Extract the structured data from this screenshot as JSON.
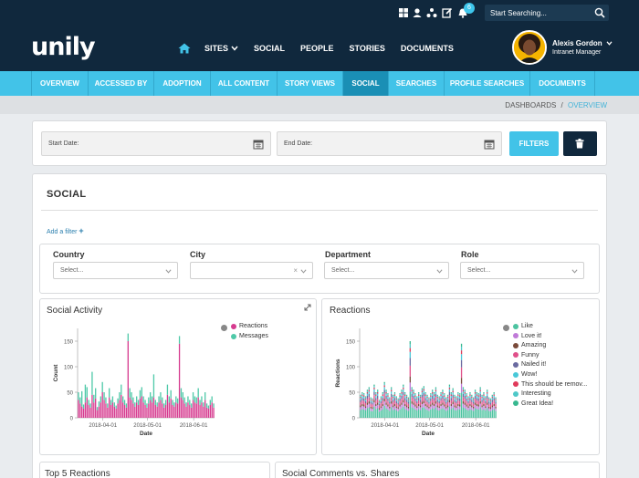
{
  "topbar": {
    "notifications_count": "6",
    "search_placeholder": "Start Searching..."
  },
  "header": {
    "logo": "unily",
    "nav": [
      {
        "label": "SITES",
        "has_dropdown": true
      },
      {
        "label": "SOCIAL"
      },
      {
        "label": "PEOPLE"
      },
      {
        "label": "STORIES"
      },
      {
        "label": "DOCUMENTS"
      }
    ],
    "user": {
      "name": "Alexis Gordon",
      "role": "Intranet Manager"
    }
  },
  "subnav": {
    "tabs": [
      "OVERVIEW",
      "ACCESSED BY",
      "ADOPTION",
      "ALL CONTENT",
      "STORY VIEWS",
      "SOCIAL",
      "SEARCHES",
      "PROFILE SEARCHES",
      "DOCUMENTS"
    ],
    "active": "SOCIAL"
  },
  "breadcrumb": {
    "parent": "DASHBOARDS",
    "separator": "/",
    "current": "OVERVIEW"
  },
  "filters_bar": {
    "start_date_placeholder": "Start Date:",
    "end_date_placeholder": "End Date:",
    "filters_button": "FILTERS"
  },
  "social": {
    "title": "SOCIAL",
    "add_filter": "Add a filter",
    "filters": [
      {
        "label": "Country",
        "placeholder": "Select..."
      },
      {
        "label": "City",
        "placeholder": ""
      },
      {
        "label": "Department",
        "placeholder": "Select..."
      },
      {
        "label": "Role",
        "placeholder": "Select..."
      }
    ]
  },
  "colors": {
    "dark_navy": "#10283d",
    "accent_cyan": "#42c3e8",
    "reactions_pink": "#d63b8f",
    "messages_teal": "#4fc9a8"
  },
  "chart_data": [
    {
      "type": "bar",
      "stacked": true,
      "title": "Social Activity",
      "xlabel": "Date",
      "ylabel": "Count",
      "ylim": [
        0,
        175
      ],
      "yticks": [
        0,
        50,
        100,
        150
      ],
      "xticks": [
        "2018-04-01",
        "2018-05-01",
        "2018-06-01"
      ],
      "x_range": [
        "2018-03-15",
        "2018-06-15"
      ],
      "legend_position": "right",
      "series": [
        {
          "name": "Reactions",
          "color": "#d63b8f",
          "values": [
            35,
            28,
            22,
            18,
            30,
            40,
            25,
            20,
            45,
            30,
            38,
            15,
            22,
            30,
            50,
            35,
            28,
            20,
            40,
            25,
            30,
            22,
            18,
            28,
            35,
            45,
            30,
            25,
            20,
            150,
            40,
            35,
            28,
            22,
            30,
            25,
            38,
            42,
            30,
            25,
            20,
            28,
            35,
            30,
            40,
            25,
            22,
            30,
            35,
            28,
            20,
            25,
            45,
            30,
            38,
            25,
            22,
            30,
            28,
            145,
            40,
            35,
            28,
            22,
            30,
            25,
            20,
            35,
            30,
            28,
            40,
            25,
            30,
            22,
            35,
            20,
            18,
            25,
            30,
            20
          ]
        },
        {
          "name": "Messages",
          "color": "#4fc9a8",
          "values": [
            15,
            12,
            30,
            8,
            35,
            20,
            10,
            8,
            45,
            15,
            20,
            6,
            10,
            12,
            20,
            15,
            12,
            8,
            18,
            10,
            12,
            8,
            6,
            10,
            15,
            20,
            12,
            10,
            8,
            15,
            18,
            15,
            12,
            8,
            12,
            10,
            16,
            18,
            12,
            10,
            8,
            12,
            15,
            12,
            45,
            10,
            8,
            12,
            15,
            12,
            8,
            10,
            20,
            12,
            16,
            10,
            8,
            12,
            10,
            15,
            18,
            15,
            12,
            8,
            12,
            10,
            8,
            15,
            12,
            12,
            18,
            10,
            12,
            8,
            15,
            8,
            6,
            10,
            12,
            8
          ]
        }
      ]
    },
    {
      "type": "bar",
      "stacked": true,
      "title": "Reactions",
      "xlabel": "Date",
      "ylabel": "Reactions",
      "ylim": [
        0,
        175
      ],
      "yticks": [
        0,
        50,
        100,
        150
      ],
      "xticks": [
        "2018-04-01",
        "2018-05-01",
        "2018-06-01"
      ],
      "x_range": [
        "2018-03-15",
        "2018-06-15"
      ],
      "legend_position": "right",
      "series_names": [
        "Like",
        "Love it!",
        "Amazing",
        "Funny",
        "Nailed it!",
        "Wow!",
        "This should be remov...",
        "Interesting",
        "Great Idea!"
      ],
      "series_colors": [
        "#4cc3a0",
        "#c07ad8",
        "#7a4a3a",
        "#e0508a",
        "#6a6aa0",
        "#48c8d8",
        "#e03a5a",
        "#4ec8c8",
        "#38b890"
      ],
      "totals": [
        45,
        50,
        48,
        42,
        55,
        60,
        40,
        38,
        65,
        50,
        55,
        35,
        42,
        50,
        70,
        55,
        48,
        40,
        60,
        45,
        50,
        42,
        38,
        48,
        55,
        65,
        50,
        45,
        40,
        150,
        60,
        55,
        48,
        42,
        50,
        45,
        58,
        62,
        50,
        45,
        40,
        48,
        55,
        50,
        60,
        45,
        42,
        50,
        55,
        48,
        40,
        45,
        65,
        50,
        58,
        45,
        42,
        50,
        48,
        145,
        60,
        55,
        48,
        42,
        50,
        45,
        40,
        55,
        50,
        48,
        60,
        45,
        50,
        42,
        55,
        40,
        38,
        45,
        50,
        40
      ]
    }
  ],
  "bottom_panels": {
    "left_title": "Top 5 Reactions",
    "right_title": "Social Comments vs. Shares"
  }
}
